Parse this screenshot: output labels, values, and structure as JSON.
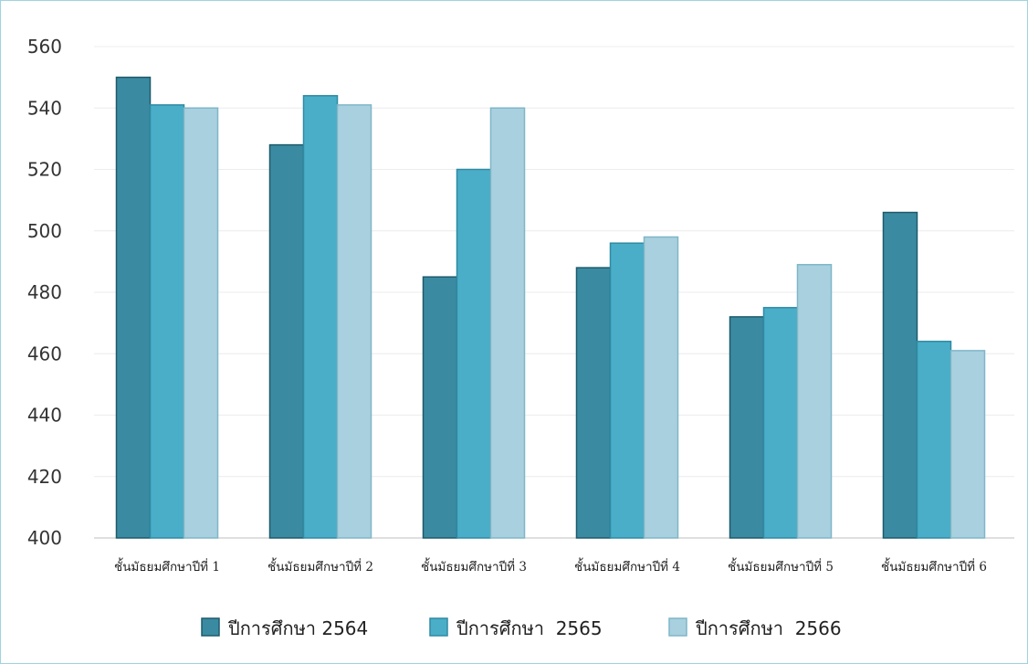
{
  "chart_data": {
    "type": "bar",
    "title": "",
    "xlabel": "",
    "ylabel": "",
    "ylim": [
      400,
      560
    ],
    "yticks": [
      400,
      420,
      440,
      460,
      480,
      500,
      520,
      540,
      560
    ],
    "grid": true,
    "legend_position": "bottom",
    "categories": [
      "ชั้นมัธยมศึกษาปีที่ 1",
      "ชั้นมัธยมศึกษาปีที่ 2",
      "ชั้นมัธยมศึกษาปีที่ 3",
      "ชั้นมัธยมศึกษาปีที่ 4",
      "ชั้นมัธยมศึกษาปีที่ 5",
      "ชั้นมัธยมศึกษาปีที่ 6"
    ],
    "series": [
      {
        "name": "ปีการศึกษา 2564",
        "color": "#3a8ba2",
        "values": [
          550,
          528,
          485,
          488,
          472,
          506
        ]
      },
      {
        "name": "ปีการศึกษา  2565",
        "color": "#4aaec8",
        "values": [
          541,
          544,
          520,
          496,
          475,
          464
        ]
      },
      {
        "name": "ปีการศึกษา  2566",
        "color": "#a9d0de",
        "values": [
          540,
          541,
          540,
          498,
          489,
          461
        ]
      }
    ]
  }
}
